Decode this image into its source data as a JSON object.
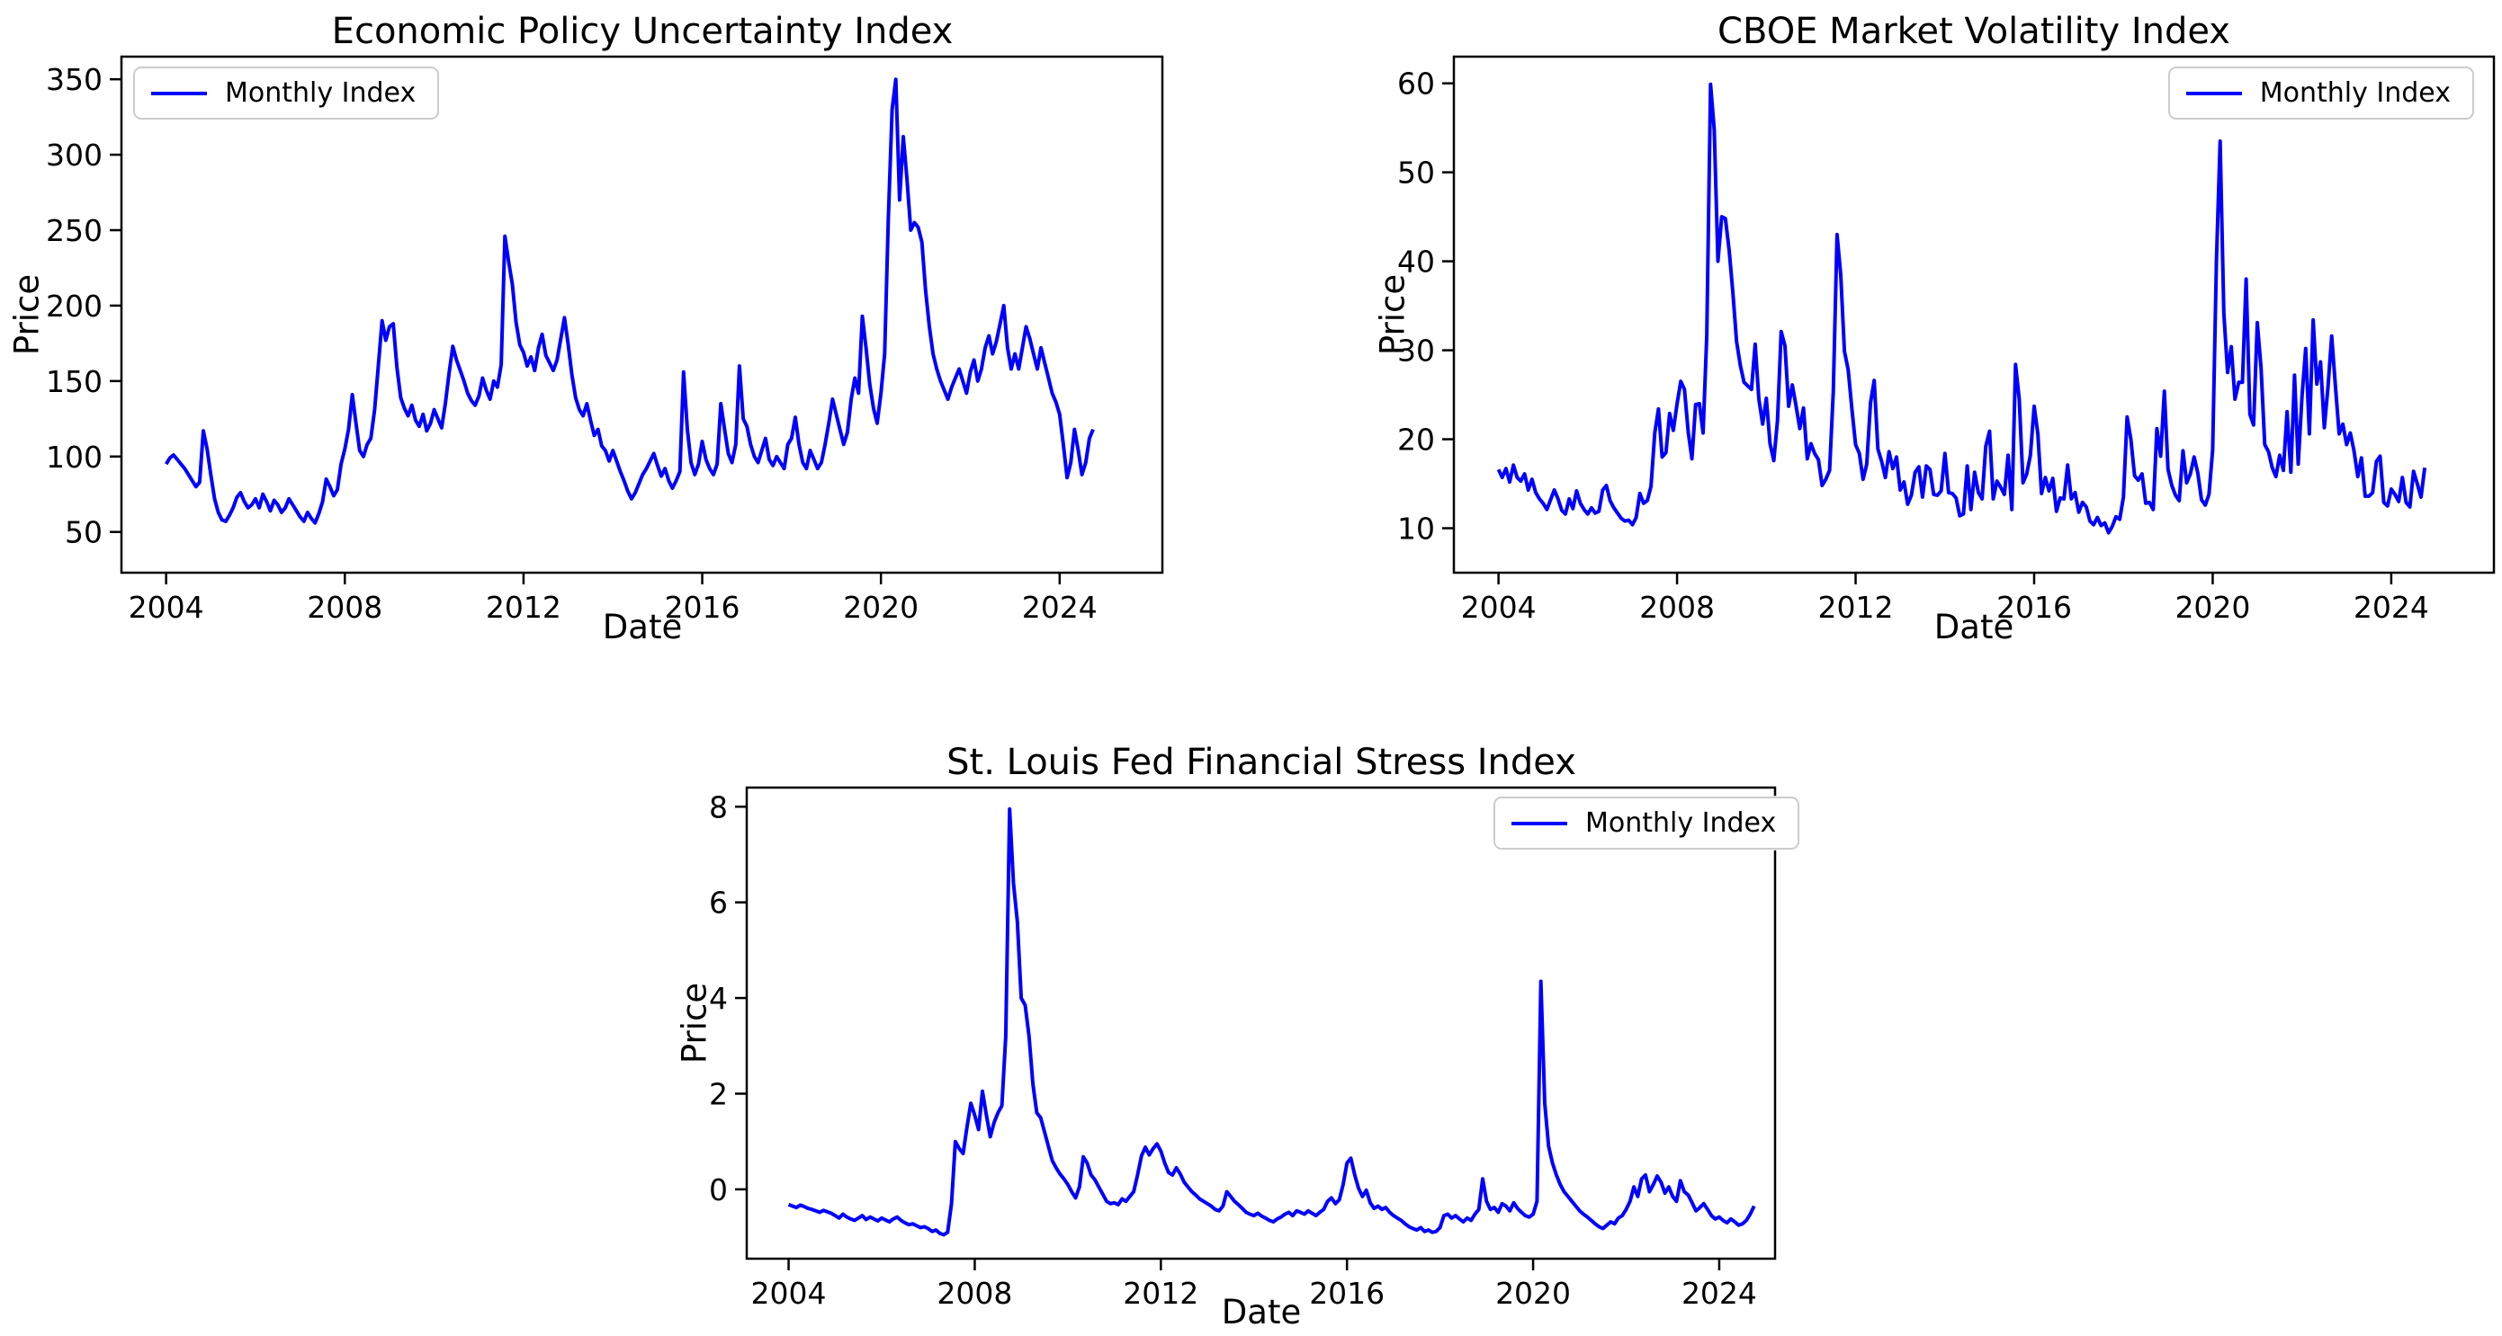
{
  "figure": {
    "background": "#ffffff",
    "text_color": "#000000",
    "spine_color": "#000000"
  },
  "chart_data": [
    {
      "type": "line",
      "title": "Economic Policy Uncertainty Index",
      "xlabel": "Date",
      "ylabel": "Price",
      "legend": {
        "label": "Monthly Index",
        "position": "upper-left"
      },
      "line_color": "#0000ff",
      "grid": false,
      "x_ticks": [
        2004,
        2008,
        2012,
        2016,
        2020,
        2024
      ],
      "y_ticks": [
        50,
        100,
        150,
        200,
        250,
        300,
        350
      ],
      "x_range": [
        2003.0,
        2026.3
      ],
      "y_range": [
        23,
        365
      ],
      "series": {
        "name": "Monthly Index",
        "start_year": 2004,
        "frequency": "monthly",
        "values": [
          95,
          99,
          101,
          98,
          95,
          92,
          88,
          84,
          80,
          83,
          117,
          105,
          88,
          72,
          63,
          58,
          57,
          61,
          66,
          73,
          76,
          70,
          66,
          68,
          72,
          66,
          75,
          70,
          64,
          71,
          68,
          63,
          66,
          72,
          68,
          64,
          60,
          57,
          63,
          59,
          56,
          62,
          70,
          85,
          80,
          74,
          78,
          95,
          105,
          118,
          141,
          122,
          104,
          100,
          108,
          112,
          131,
          160,
          190,
          177,
          186,
          188,
          159,
          139,
          132,
          127,
          134,
          124,
          120,
          128,
          117,
          122,
          131,
          125,
          119,
          135,
          155,
          173,
          164,
          157,
          150,
          142,
          137,
          134,
          140,
          152,
          144,
          138,
          150,
          146,
          161,
          246,
          229,
          214,
          189,
          174,
          169,
          160,
          166,
          157,
          172,
          181,
          167,
          162,
          157,
          164,
          178,
          192,
          174,
          154,
          139,
          131,
          127,
          135,
          124,
          114,
          118,
          107,
          104,
          97,
          104,
          97,
          90,
          84,
          77,
          72,
          76,
          82,
          88,
          92,
          97,
          102,
          94,
          87,
          92,
          84,
          79,
          84,
          90,
          156,
          118,
          96,
          88,
          95,
          110,
          98,
          92,
          88,
          95,
          135,
          118,
          102,
          96,
          108,
          160,
          125,
          120,
          108,
          100,
          96,
          104,
          112,
          98,
          94,
          100,
          96,
          92,
          108,
          112,
          126,
          108,
          96,
          92,
          104,
          98,
          92,
          96,
          108,
          122,
          138,
          128,
          118,
          108,
          116,
          138,
          152,
          142,
          193,
          172,
          148,
          132,
          122,
          142,
          168,
          258,
          330,
          350,
          270,
          312,
          284,
          250,
          255,
          252,
          242,
          210,
          186,
          168,
          158,
          150,
          144,
          138,
          146,
          152,
          158,
          150,
          142,
          156,
          164,
          150,
          158,
          172,
          180,
          168,
          176,
          188,
          200,
          172,
          158,
          168,
          158,
          172,
          186,
          178,
          168,
          158,
          172,
          162,
          152,
          142,
          136,
          128,
          108,
          86,
          96,
          118,
          104,
          88,
          96,
          112,
          118
        ]
      }
    },
    {
      "type": "line",
      "title": "CBOE Market Volatility Index",
      "xlabel": "Date",
      "ylabel": "Price",
      "legend": {
        "label": "Monthly Index",
        "position": "upper-right"
      },
      "line_color": "#0000ff",
      "grid": false,
      "x_ticks": [
        2004,
        2008,
        2012,
        2016,
        2020,
        2024
      ],
      "y_ticks": [
        10,
        20,
        30,
        40,
        50,
        60
      ],
      "x_range": [
        2003.0,
        2026.3
      ],
      "y_range": [
        5,
        63
      ],
      "series": {
        "name": "Monthly Index",
        "start_year": 2004,
        "frequency": "monthly",
        "values": [
          16.6,
          15.7,
          16.7,
          15.2,
          17.1,
          15.7,
          15.3,
          16.1,
          14.3,
          15.5,
          14.0,
          13.3,
          12.8,
          12.1,
          13.2,
          14.3,
          13.3,
          12.0,
          11.6,
          13.3,
          12.2,
          14.2,
          12.8,
          12.1,
          11.6,
          12.3,
          11.7,
          11.9,
          14.3,
          14.8,
          13.1,
          12.3,
          11.7,
          11.1,
          10.8,
          10.9,
          10.4,
          11.2,
          13.9,
          12.8,
          13.1,
          14.7,
          20.7,
          23.4,
          18.0,
          18.5,
          22.9,
          21.0,
          24.0,
          26.5,
          25.6,
          20.8,
          17.8,
          23.9,
          24.0,
          20.7,
          31.7,
          59.9,
          54.8,
          40.0,
          45.0,
          44.8,
          41.2,
          36.5,
          31.0,
          28.3,
          26.4,
          26.0,
          25.6,
          30.7,
          24.5,
          21.7,
          24.6,
          19.5,
          17.6,
          22.1,
          32.1,
          30.5,
          23.7,
          26.1,
          23.7,
          21.2,
          23.5,
          17.8,
          19.5,
          18.4,
          17.7,
          14.8,
          15.5,
          16.5,
          25.3,
          43.0,
          38.5,
          29.9,
          27.8,
          23.4,
          19.4,
          18.4,
          15.5,
          17.2,
          24.1,
          26.6,
          18.9,
          17.5,
          15.7,
          18.6,
          16.7,
          18.0,
          14.3,
          15.2,
          12.7,
          13.7,
          16.3,
          16.9,
          13.5,
          17.0,
          16.6,
          13.8,
          13.7,
          14.2,
          18.4,
          14.0,
          13.9,
          13.4,
          11.4,
          11.6,
          17.0,
          12.1,
          16.3,
          14.0,
          13.3,
          19.2,
          20.9,
          13.3,
          15.3,
          14.6,
          13.8,
          18.2,
          12.1,
          28.4,
          24.5,
          15.1,
          16.1,
          18.2,
          23.7,
          20.6,
          13.9,
          15.7,
          14.2,
          15.6,
          11.9,
          13.4,
          13.3,
          17.1,
          13.3,
          14.0,
          11.8,
          12.9,
          12.4,
          10.8,
          10.4,
          11.2,
          10.3,
          10.6,
          9.5,
          10.2,
          11.3,
          11.0,
          13.5,
          22.5,
          20.0,
          15.9,
          15.4,
          16.1,
          12.8,
          12.9,
          12.1,
          21.2,
          18.1,
          25.4,
          16.6,
          14.8,
          13.7,
          13.1,
          18.7,
          15.1,
          16.1,
          18.0,
          16.2,
          13.2,
          12.6,
          13.8,
          18.8,
          40.1,
          53.5,
          34.2,
          27.5,
          30.4,
          24.5,
          26.4,
          26.4,
          38.0,
          22.8,
          21.6,
          33.1,
          28.0,
          19.4,
          18.6,
          16.8,
          15.8,
          18.2,
          16.5,
          23.1,
          16.3,
          27.2,
          17.2,
          24.8,
          30.2,
          20.6,
          33.4,
          26.2,
          28.7,
          21.3,
          25.9,
          31.6,
          25.9,
          20.6,
          21.7,
          19.4,
          20.7,
          18.7,
          15.8,
          17.9,
          13.6,
          13.6,
          14.0,
          17.5,
          18.1,
          12.9,
          12.5,
          14.4,
          13.8,
          13.0,
          15.7,
          12.9,
          12.4,
          16.4,
          15.0,
          13.5,
          16.8
        ]
      }
    },
    {
      "type": "line",
      "title": "St. Louis Fed Financial Stress Index",
      "xlabel": "Date",
      "ylabel": "Price",
      "legend": {
        "label": "Monthly Index",
        "position": "upper-right"
      },
      "line_color": "#0000ff",
      "grid": false,
      "x_ticks": [
        2004,
        2008,
        2012,
        2016,
        2020,
        2024
      ],
      "y_ticks": [
        0,
        2,
        4,
        6,
        8
      ],
      "x_range": [
        2003.1,
        2025.2
      ],
      "y_range": [
        -1.45,
        8.4
      ],
      "series": {
        "name": "Monthly Index",
        "start_year": 2004,
        "frequency": "monthly",
        "values": [
          -0.32,
          -0.35,
          -0.38,
          -0.33,
          -0.36,
          -0.4,
          -0.42,
          -0.45,
          -0.48,
          -0.44,
          -0.47,
          -0.5,
          -0.55,
          -0.6,
          -0.52,
          -0.58,
          -0.62,
          -0.65,
          -0.6,
          -0.55,
          -0.63,
          -0.58,
          -0.62,
          -0.66,
          -0.6,
          -0.64,
          -0.68,
          -0.62,
          -0.58,
          -0.65,
          -0.7,
          -0.74,
          -0.72,
          -0.76,
          -0.8,
          -0.78,
          -0.82,
          -0.88,
          -0.85,
          -0.92,
          -0.95,
          -0.9,
          -0.3,
          1.0,
          0.85,
          0.75,
          1.3,
          1.8,
          1.55,
          1.25,
          2.05,
          1.55,
          1.1,
          1.4,
          1.6,
          1.75,
          3.2,
          7.95,
          6.4,
          5.6,
          4.0,
          3.85,
          3.2,
          2.2,
          1.6,
          1.5,
          1.2,
          0.9,
          0.6,
          0.45,
          0.32,
          0.22,
          0.1,
          -0.05,
          -0.18,
          0.05,
          0.68,
          0.55,
          0.3,
          0.2,
          0.05,
          -0.1,
          -0.25,
          -0.3,
          -0.28,
          -0.32,
          -0.2,
          -0.25,
          -0.15,
          -0.05,
          0.3,
          0.7,
          0.88,
          0.72,
          0.85,
          0.95,
          0.8,
          0.55,
          0.35,
          0.3,
          0.45,
          0.32,
          0.15,
          0.05,
          -0.05,
          -0.12,
          -0.2,
          -0.25,
          -0.3,
          -0.35,
          -0.42,
          -0.45,
          -0.35,
          -0.05,
          -0.15,
          -0.25,
          -0.32,
          -0.4,
          -0.48,
          -0.52,
          -0.55,
          -0.5,
          -0.56,
          -0.6,
          -0.65,
          -0.68,
          -0.62,
          -0.58,
          -0.52,
          -0.48,
          -0.55,
          -0.45,
          -0.48,
          -0.52,
          -0.45,
          -0.5,
          -0.55,
          -0.48,
          -0.42,
          -0.25,
          -0.18,
          -0.3,
          -0.22,
          0.1,
          0.55,
          0.65,
          0.3,
          0.02,
          -0.15,
          -0.02,
          -0.28,
          -0.4,
          -0.35,
          -0.42,
          -0.38,
          -0.48,
          -0.55,
          -0.6,
          -0.65,
          -0.72,
          -0.78,
          -0.82,
          -0.85,
          -0.8,
          -0.88,
          -0.85,
          -0.9,
          -0.88,
          -0.8,
          -0.55,
          -0.52,
          -0.6,
          -0.55,
          -0.62,
          -0.68,
          -0.6,
          -0.65,
          -0.52,
          -0.42,
          0.22,
          -0.25,
          -0.42,
          -0.38,
          -0.48,
          -0.3,
          -0.35,
          -0.45,
          -0.28,
          -0.4,
          -0.48,
          -0.55,
          -0.58,
          -0.52,
          -0.25,
          4.35,
          1.8,
          0.9,
          0.55,
          0.3,
          0.1,
          -0.05,
          -0.15,
          -0.25,
          -0.35,
          -0.45,
          -0.52,
          -0.58,
          -0.65,
          -0.72,
          -0.78,
          -0.82,
          -0.75,
          -0.68,
          -0.72,
          -0.6,
          -0.55,
          -0.42,
          -0.25,
          0.05,
          -0.15,
          0.22,
          0.3,
          -0.05,
          0.1,
          0.28,
          0.15,
          -0.08,
          0.05,
          -0.15,
          -0.25,
          0.18,
          -0.05,
          -0.12,
          -0.28,
          -0.45,
          -0.38,
          -0.3,
          -0.42,
          -0.55,
          -0.62,
          -0.58,
          -0.65,
          -0.7,
          -0.62,
          -0.68,
          -0.75,
          -0.72,
          -0.65,
          -0.52,
          -0.35
        ]
      }
    }
  ]
}
